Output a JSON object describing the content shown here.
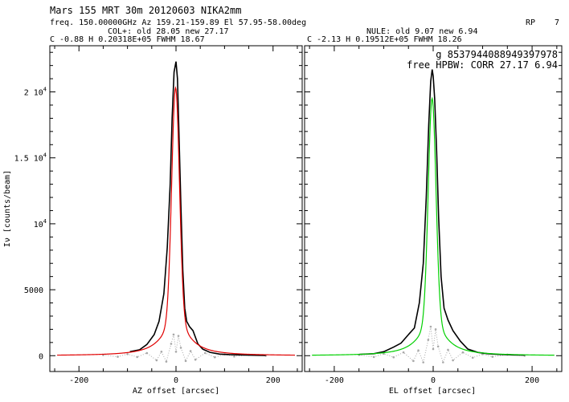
{
  "header": {
    "line1": "Mars       155  MRT  30m    20120603  NIKA2mm",
    "line2": "freq. 150.00000GHz  Az 159.21-159.89  El 57.95-58.00deg",
    "col_text": "COL+: old    28.05  new     27.17",
    "left_params": "C   -0.88           H   0.20318E+05            FWHM    18.67",
    "rp_label": "RP",
    "rp_value": "7",
    "nule_text": "NULE: old     9.07  new      6.94",
    "right_params": "C   -2.13           H   0.19512E+05            FWHM    18.26",
    "g_text": "g 8537944088949397978",
    "hpbw_text": "free HPBW: CORR  27.17    6.94"
  },
  "colors": {
    "data_line": "#000000",
    "residual": "#a8a8a8",
    "fit_az": "#e00000",
    "fit_el": "#00d000"
  },
  "chart_data": [
    {
      "type": "line",
      "name": "azimuth scan",
      "xlabel": "AZ offset [arcsec]",
      "ylabel": "Iν [counts/beam]",
      "xlim": [
        -260,
        260
      ],
      "ylim": [
        -1200,
        23500
      ],
      "x_ticks": [
        -200,
        0,
        200
      ],
      "y_ticks": [
        {
          "value": 0,
          "label": "0",
          "exp": ""
        },
        {
          "value": 5000,
          "label": "5000",
          "exp": ""
        },
        {
          "value": 10000,
          "label": "10",
          "exp": "4"
        },
        {
          "value": 15000,
          "label": "1.5 10",
          "exp": "4"
        },
        {
          "value": 20000,
          "label": "2 10",
          "exp": "4"
        }
      ],
      "fit": {
        "center": -0.88,
        "height": 20318,
        "fwhm": 18.67,
        "x_range": [
          -245,
          245
        ]
      },
      "series": [
        {
          "role": "data",
          "x": [
            -95,
            -75,
            -60,
            -45,
            -35,
            -25,
            -18,
            -12,
            -8,
            -4,
            0,
            3,
            6,
            10,
            14,
            18,
            22,
            28,
            35,
            45,
            55,
            70,
            90,
            110,
            130,
            150,
            170,
            185
          ],
          "y": [
            300,
            450,
            850,
            1600,
            2600,
            4700,
            8200,
            13000,
            18000,
            21500,
            22300,
            21000,
            17000,
            11500,
            6500,
            3600,
            2600,
            2200,
            1900,
            900,
            500,
            250,
            120,
            80,
            60,
            40,
            30,
            20
          ]
        },
        {
          "role": "residual",
          "x": [
            -150,
            -120,
            -100,
            -80,
            -60,
            -40,
            -30,
            -20,
            -10,
            -5,
            0,
            5,
            10,
            20,
            30,
            40,
            60,
            80,
            100,
            120,
            150,
            185
          ],
          "y": [
            50,
            -80,
            120,
            -100,
            200,
            -350,
            300,
            -450,
            900,
            1600,
            300,
            1500,
            600,
            -400,
            350,
            -300,
            200,
            -120,
            100,
            -60,
            60,
            0
          ]
        }
      ]
    },
    {
      "type": "line",
      "name": "elevation scan",
      "xlabel": "EL offset [arcsec]",
      "ylabel": "",
      "xlim": [
        -260,
        260
      ],
      "ylim": [
        -1200,
        23500
      ],
      "x_ticks": [
        -200,
        0,
        200
      ],
      "y_ticks": [],
      "fit": {
        "center": -2.13,
        "height": 19512,
        "fwhm": 18.26,
        "x_range": [
          -245,
          245
        ]
      },
      "series": [
        {
          "role": "data",
          "x": [
            -150,
            -120,
            -100,
            -80,
            -65,
            -50,
            -38,
            -28,
            -20,
            -14,
            -9,
            -5,
            -2,
            0,
            3,
            7,
            11,
            16,
            22,
            30,
            40,
            55,
            70,
            90,
            110,
            130,
            160,
            185
          ],
          "y": [
            100,
            150,
            300,
            650,
            950,
            1600,
            2100,
            4000,
            7000,
            12000,
            17500,
            20800,
            21700,
            21200,
            19500,
            15500,
            10500,
            6000,
            3600,
            2700,
            1900,
            1100,
            500,
            250,
            150,
            100,
            60,
            40
          ]
        },
        {
          "role": "residual",
          "x": [
            -150,
            -120,
            -100,
            -80,
            -60,
            -40,
            -30,
            -20,
            -10,
            -5,
            0,
            5,
            10,
            20,
            30,
            40,
            60,
            80,
            100,
            120,
            150,
            185
          ],
          "y": [
            60,
            -100,
            150,
            -120,
            250,
            -400,
            400,
            -500,
            1200,
            2200,
            500,
            2000,
            700,
            -500,
            450,
            -350,
            250,
            -150,
            120,
            -80,
            80,
            0
          ]
        }
      ]
    }
  ]
}
